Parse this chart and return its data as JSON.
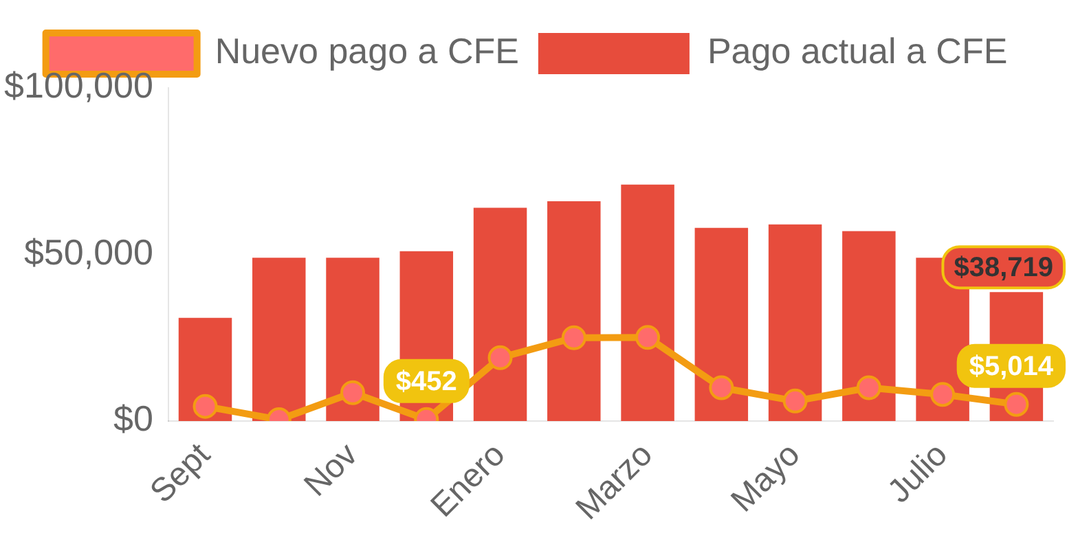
{
  "chart_data": {
    "type": "bar",
    "categories": [
      "Sept",
      null,
      "Nov",
      null,
      "Enero",
      null,
      "Marzo",
      null,
      "Mayo",
      null,
      "Julio",
      null
    ],
    "series": [
      {
        "name": "Nuevo pago a CFE",
        "type": "line",
        "color": "#f39c12",
        "values": [
          4400,
          400,
          8500,
          452,
          19000,
          25000,
          25100,
          10000,
          6000,
          10000,
          8000,
          5014
        ],
        "value_labels": [
          null,
          null,
          null,
          "$452",
          null,
          null,
          null,
          null,
          null,
          null,
          null,
          "$5,014"
        ]
      },
      {
        "name": "Pago actual a CFE",
        "color": "#e74c3c",
        "values": [
          31000,
          49000,
          49000,
          51000,
          64000,
          66000,
          71000,
          58000,
          59000,
          57000,
          49000,
          38719
        ],
        "value_labels": [
          null,
          null,
          null,
          null,
          null,
          null,
          null,
          null,
          null,
          null,
          null,
          "$38,719"
        ]
      }
    ],
    "ylim": [
      0,
      100000
    ],
    "yticks": [
      {
        "value": 0,
        "label": "$0"
      },
      {
        "value": 50000,
        "label": "$50,000"
      },
      {
        "value": 100000,
        "label": "$100,000"
      }
    ],
    "grid": false,
    "legend": "top",
    "marker": "circle",
    "line_style": "solid"
  }
}
